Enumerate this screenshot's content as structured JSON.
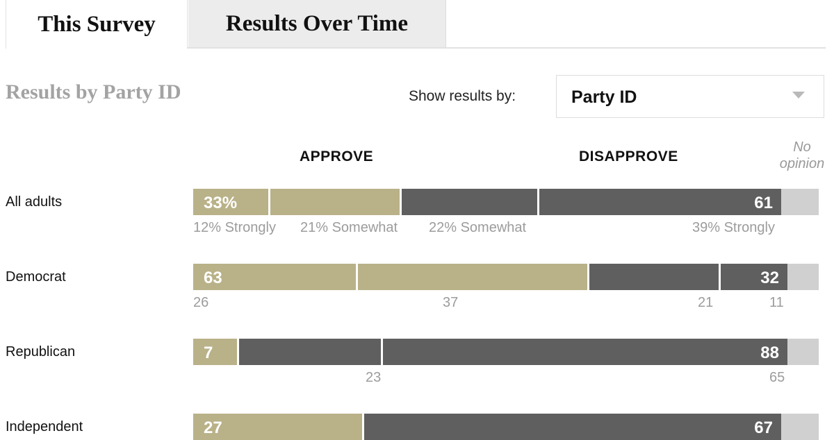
{
  "tabs": [
    {
      "label": "This Survey",
      "active": true
    },
    {
      "label": "Results Over Time",
      "active": false
    }
  ],
  "section_title": "Results by Party ID",
  "filter": {
    "label": "Show results by:",
    "selected": "Party ID"
  },
  "colors": {
    "approve": "#b9b188",
    "disapprove": "#5f5f5f",
    "no_opinion": "#d0d0d0"
  },
  "chart_data": {
    "type": "bar",
    "orientation": "horizontal-stacked",
    "headers": {
      "approve": "APPROVE",
      "disapprove": "DISAPPROVE",
      "no_opinion": "No opinion"
    },
    "categories": [
      "All adults",
      "Democrat",
      "Republican",
      "Independent"
    ],
    "rows": [
      {
        "label": "All adults",
        "approve_total": 33,
        "approve_total_label": "33%",
        "strongly_approve": 12,
        "somewhat_approve": 21,
        "somewhat_disapprove": 22,
        "strongly_disapprove": 39,
        "disapprove_total": 61,
        "disapprove_total_label": "61",
        "no_opinion": 6,
        "sub_labels": [
          "12% Strongly",
          "21% Somewhat",
          "22% Somewhat",
          "39% Strongly"
        ]
      },
      {
        "label": "Democrat",
        "approve_total": 63,
        "approve_total_label": "63",
        "strongly_approve": 26,
        "somewhat_approve": 37,
        "somewhat_disapprove": 21,
        "strongly_disapprove": 11,
        "disapprove_total": 32,
        "disapprove_total_label": "32",
        "no_opinion": 5,
        "sub_labels": [
          "26",
          "37",
          "21",
          "11"
        ]
      },
      {
        "label": "Republican",
        "approve_total": 7,
        "approve_total_label": "7",
        "strongly_approve": null,
        "somewhat_approve": null,
        "somewhat_disapprove": 23,
        "strongly_disapprove": 65,
        "disapprove_total": 88,
        "disapprove_total_label": "88",
        "no_opinion": 5,
        "sub_labels": [
          "",
          "",
          "23",
          "65"
        ]
      },
      {
        "label": "Independent",
        "approve_total": 27,
        "approve_total_label": "27",
        "strongly_approve": null,
        "somewhat_approve": null,
        "somewhat_disapprove": null,
        "strongly_disapprove": null,
        "disapprove_total": 67,
        "disapprove_total_label": "67",
        "no_opinion": 6,
        "sub_labels": [
          "",
          "",
          "",
          ""
        ]
      }
    ]
  }
}
